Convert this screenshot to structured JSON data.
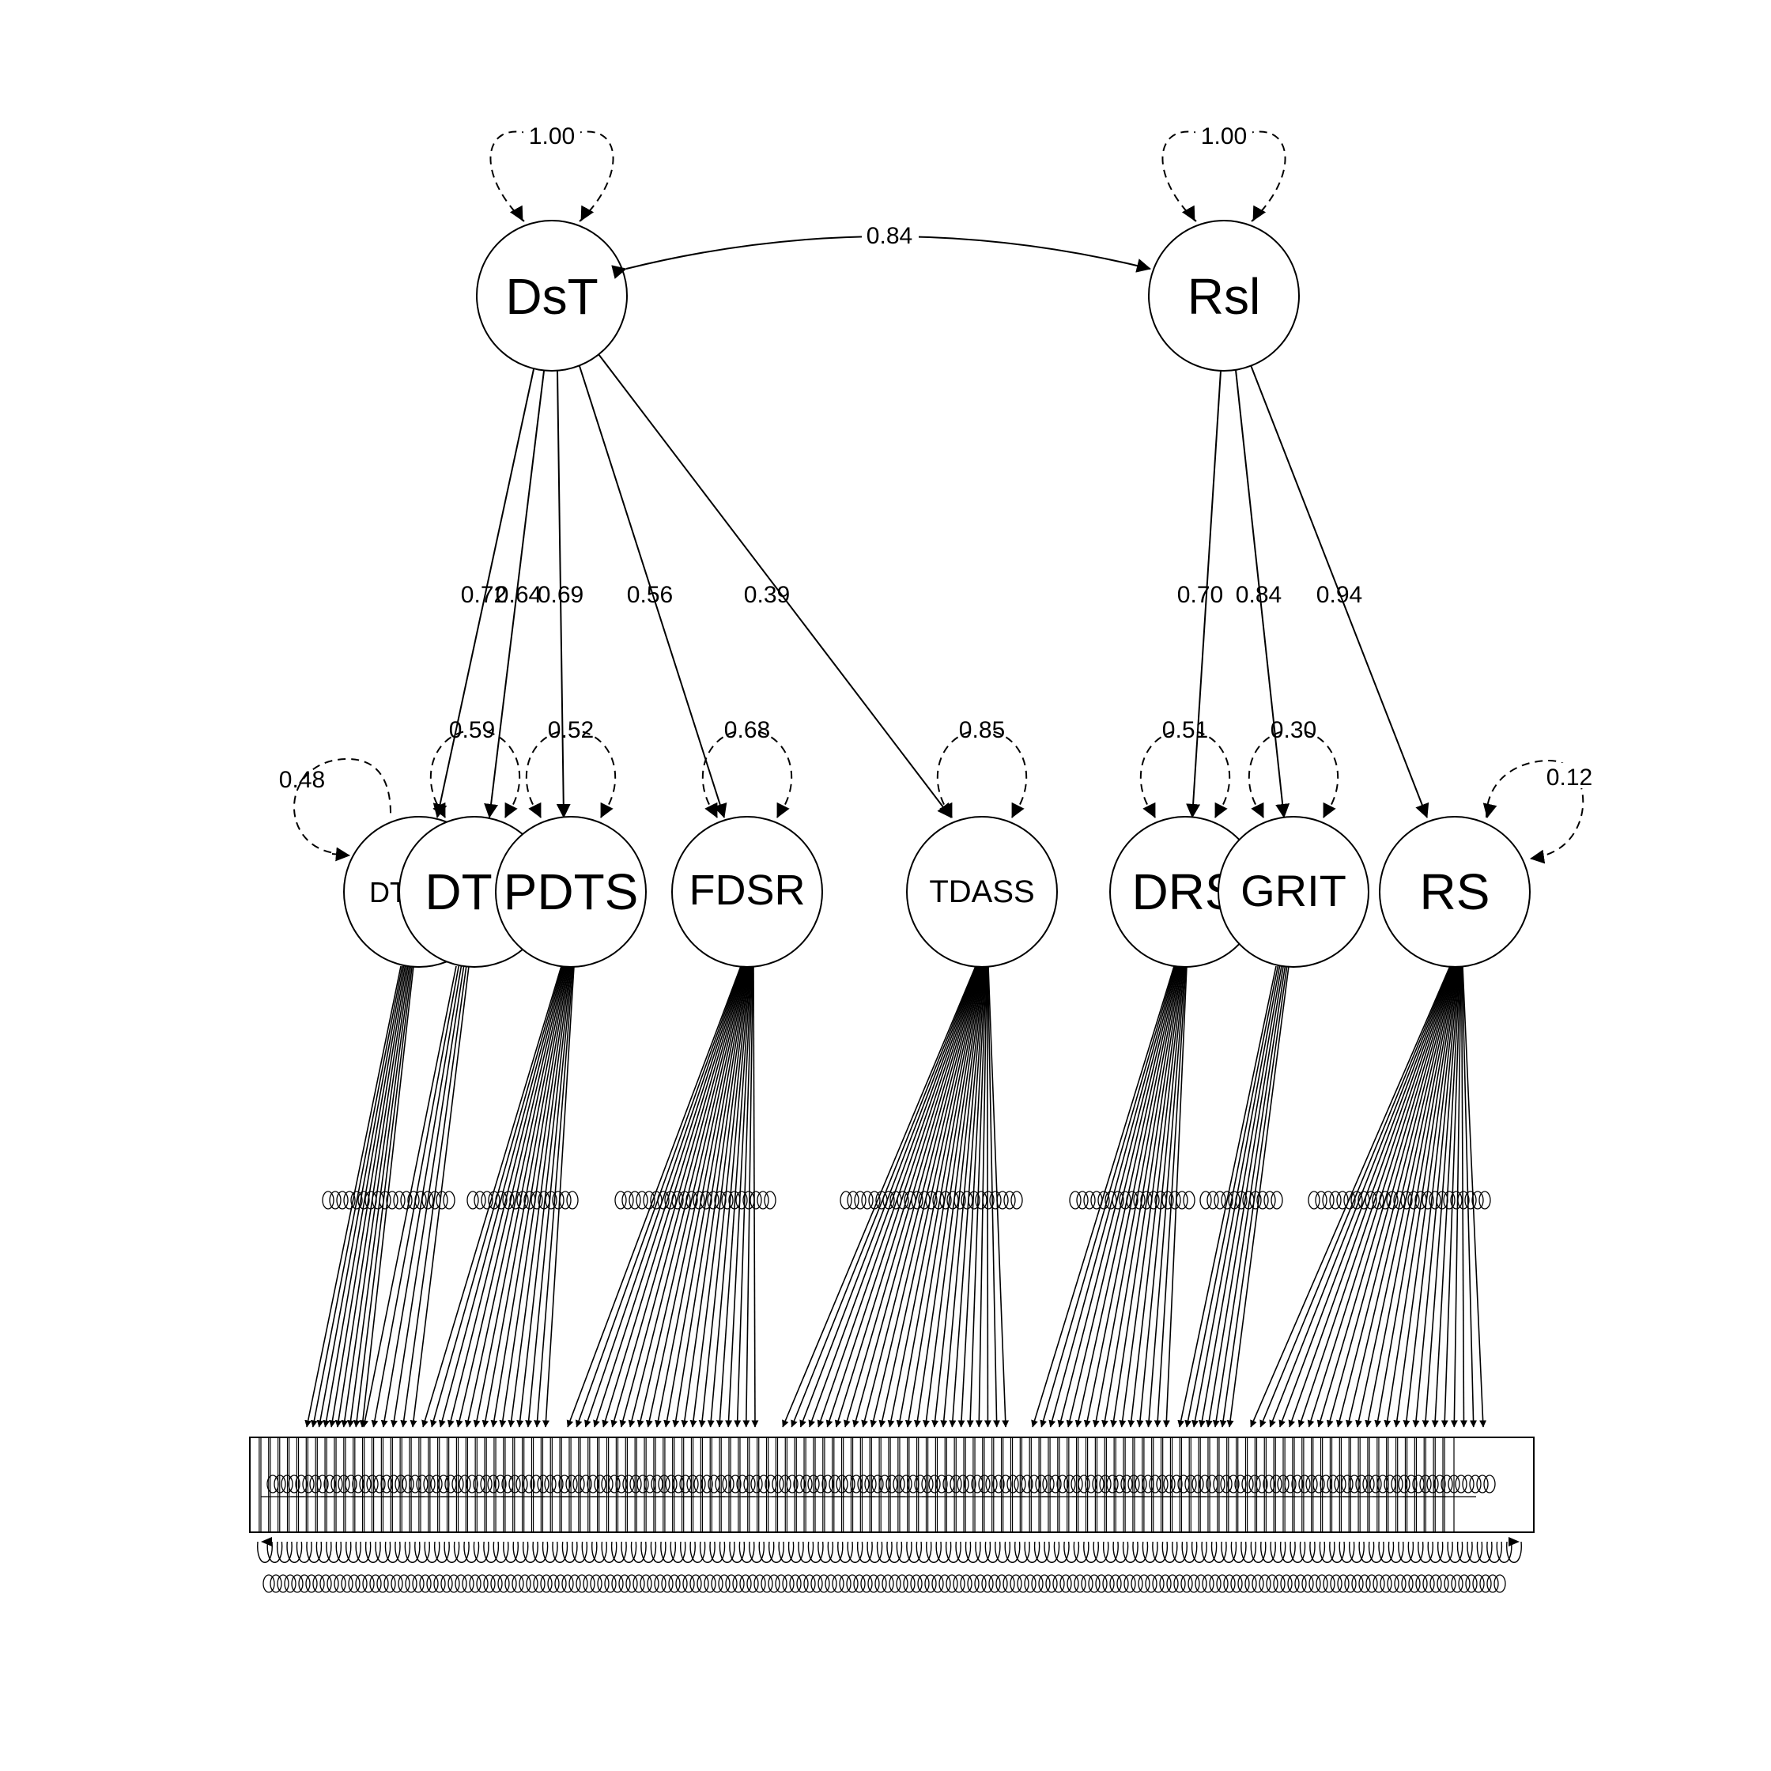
{
  "diagram": {
    "colors": {
      "stroke": "#000000",
      "background": "#ffffff"
    },
    "latent_top": [
      {
        "id": "dst",
        "label": "DsT",
        "variance": "1.00"
      },
      {
        "id": "rsl",
        "label": "Rsl",
        "variance": "1.00"
      }
    ],
    "factor_covariance": "0.84",
    "latent_mid": [
      {
        "id": "dtneg",
        "label": "DTNEG"
      },
      {
        "id": "dt",
        "label": "DT"
      },
      {
        "id": "pdts",
        "label": "PDTS"
      },
      {
        "id": "fdsr",
        "label": "FDSR"
      },
      {
        "id": "tdass",
        "label": "TDASS"
      },
      {
        "id": "drs",
        "label": "DRS"
      },
      {
        "id": "grit",
        "label": "GRIT"
      },
      {
        "id": "rs",
        "label": "RS"
      }
    ],
    "second_order_loadings": [
      {
        "from": "dst",
        "to": "dtneg",
        "value": "0.72"
      },
      {
        "from": "dst",
        "to": "dt",
        "value": "0.64"
      },
      {
        "from": "dst",
        "to": "pdts",
        "value": "0.69"
      },
      {
        "from": "dst",
        "to": "fdsr",
        "value": "0.56"
      },
      {
        "from": "dst",
        "to": "tdass",
        "value": "0.39"
      },
      {
        "from": "rsl",
        "to": "drs",
        "value": "0.70"
      },
      {
        "from": "rsl",
        "to": "grit",
        "value": "0.84"
      },
      {
        "from": "rsl",
        "to": "rs",
        "value": "0.94"
      }
    ],
    "residual_variances": [
      {
        "factor": "dtneg",
        "value": "0.48"
      },
      {
        "factor": "dt",
        "value": "0.59"
      },
      {
        "factor": "pdts",
        "value": "0.52"
      },
      {
        "factor": "fdsr",
        "value": "0.68"
      },
      {
        "factor": "tdass",
        "value": "0.85"
      },
      {
        "factor": "drs",
        "value": "0.51"
      },
      {
        "factor": "grit",
        "value": "0.30"
      },
      {
        "factor": "rs",
        "value": "0.12"
      }
    ],
    "indicator_groups": [
      {
        "factor": "dtneg",
        "count": 10
      },
      {
        "factor": "dt",
        "count": 6
      },
      {
        "factor": "pdts",
        "count": 15
      },
      {
        "factor": "fdsr",
        "count": 22
      },
      {
        "factor": "tdass",
        "count": 26
      },
      {
        "factor": "drs",
        "count": 16
      },
      {
        "factor": "grit",
        "count": 8
      },
      {
        "factor": "rs",
        "count": 25
      }
    ]
  }
}
